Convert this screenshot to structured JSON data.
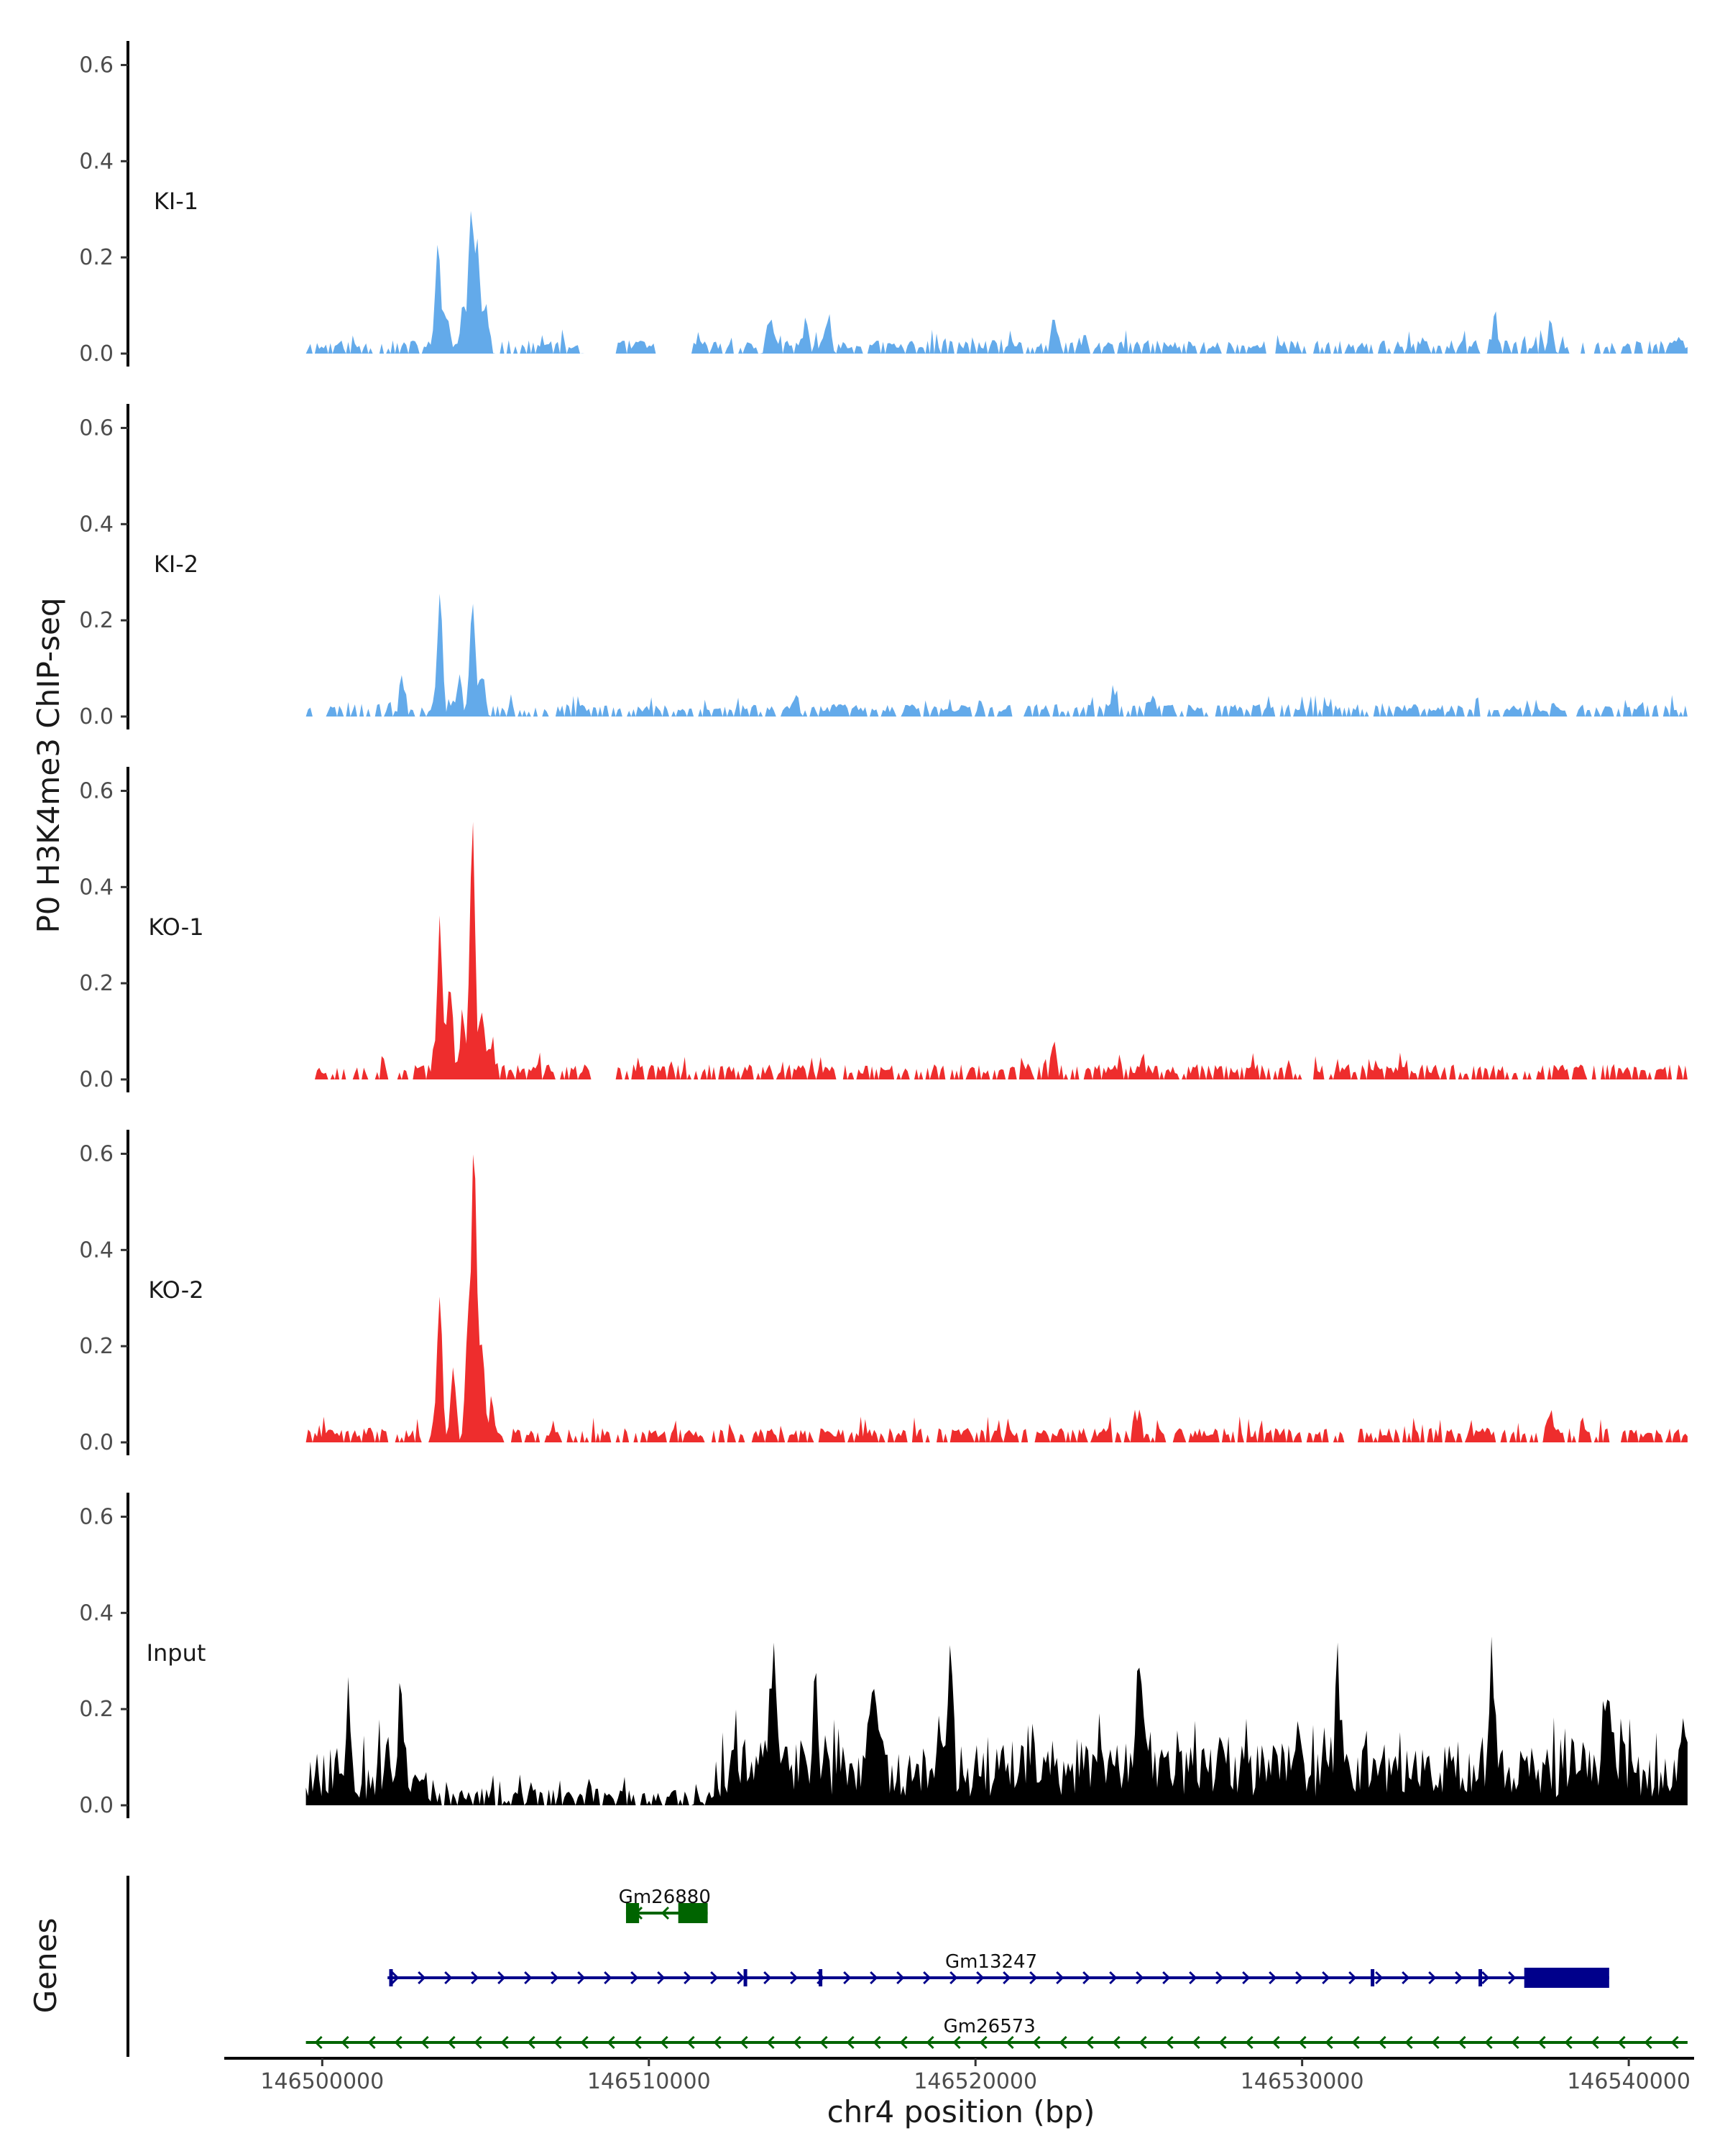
{
  "chart_data": {
    "type": "area",
    "title": "",
    "ylabel": "P0 H3K4me3 ChIP-seq",
    "xlabel": "chr4 position (bp)",
    "ylim": [
      0,
      0.65
    ],
    "yticks": [
      0.0,
      0.2,
      0.4,
      0.6
    ],
    "ytick_labels": [
      "0.0",
      "0.2",
      "0.4",
      "0.6"
    ],
    "xlim": [
      146497000,
      146542000
    ],
    "xticks": [
      146500000,
      146510000,
      146520000,
      146530000,
      146540000
    ],
    "xtick_labels": [
      "146500000",
      "146510000",
      "146520000",
      "146530000",
      "146540000"
    ],
    "region": [
      146499500,
      146541800
    ],
    "tracks": [
      {
        "name": "KI-1",
        "color": "#63aaea",
        "peaks": [
          [
            146503550,
            0.225
          ],
          [
            146503800,
            0.06
          ],
          [
            146504300,
            0.085
          ],
          [
            146504550,
            0.27
          ],
          [
            146504750,
            0.21
          ],
          [
            146505000,
            0.07
          ],
          [
            146508200,
            0.035
          ],
          [
            146513700,
            0.065
          ],
          [
            146514800,
            0.06
          ],
          [
            146515500,
            0.06
          ],
          [
            146522400,
            0.05
          ],
          [
            146535900,
            0.07
          ],
          [
            146537600,
            0.05
          ]
        ],
        "gaps": [
          [
            146508000,
            146509000
          ],
          [
            146510200,
            146511200
          ]
        ],
        "noise": 0.028,
        "seed": 11
      },
      {
        "name": "KI-2",
        "color": "#63aaea",
        "peaks": [
          [
            146502450,
            0.07
          ],
          [
            146503600,
            0.245
          ],
          [
            146504200,
            0.065
          ],
          [
            146504600,
            0.24
          ],
          [
            146504900,
            0.08
          ],
          [
            146514500,
            0.045
          ],
          [
            146524200,
            0.04
          ],
          [
            146525400,
            0.035
          ]
        ],
        "gaps": [],
        "noise": 0.026,
        "seed": 23
      },
      {
        "name": "KO-1",
        "color": "#ee2d2d",
        "peaks": [
          [
            146503600,
            0.32
          ],
          [
            146503900,
            0.2
          ],
          [
            146504300,
            0.13
          ],
          [
            146504600,
            0.52
          ],
          [
            146504900,
            0.14
          ],
          [
            146505200,
            0.07
          ],
          [
            146522400,
            0.055
          ],
          [
            146525100,
            0.045
          ]
        ],
        "gaps": [
          [
            146508300,
            146509000
          ]
        ],
        "noise": 0.032,
        "seed": 37
      },
      {
        "name": "KO-2",
        "color": "#ee2d2d",
        "peaks": [
          [
            146503600,
            0.29
          ],
          [
            146504000,
            0.14
          ],
          [
            146504450,
            0.22
          ],
          [
            146504650,
            0.6
          ],
          [
            146504900,
            0.2
          ],
          [
            146505200,
            0.08
          ],
          [
            146525000,
            0.055
          ],
          [
            146537600,
            0.045
          ]
        ],
        "gaps": [],
        "noise": 0.03,
        "seed": 41
      },
      {
        "name": "Input",
        "color": "#000000",
        "peaks": [
          [
            146500800,
            0.19
          ],
          [
            146502400,
            0.18
          ],
          [
            146513800,
            0.25
          ],
          [
            146515100,
            0.19
          ],
          [
            146516900,
            0.21
          ],
          [
            146519200,
            0.2
          ],
          [
            146525000,
            0.25
          ],
          [
            146531100,
            0.19
          ],
          [
            146535800,
            0.18
          ],
          [
            146539400,
            0.2
          ]
        ],
        "gaps": [],
        "noise": 0.12,
        "seed": 53
      }
    ],
    "genes_axis_label": "Genes",
    "genes": [
      {
        "name": "Gm26880",
        "start": 146509300,
        "end": 146511800,
        "strand": "-",
        "color": "#006400",
        "row": 0,
        "exons": [
          [
            146509300,
            146509700
          ],
          [
            146510900,
            146511800
          ]
        ]
      },
      {
        "name": "Gm13247",
        "start": 146502000,
        "end": 146539400,
        "strand": "+",
        "color": "#00008b",
        "row": 1,
        "exons": [
          [
            146502050,
            146502150
          ],
          [
            146512900,
            146513000
          ],
          [
            146515200,
            146515300
          ],
          [
            146532100,
            146532200
          ],
          [
            146535400,
            146535500
          ],
          [
            146536800,
            146539400
          ]
        ]
      },
      {
        "name": "Gm26573",
        "start": 146499500,
        "end": 146541800,
        "strand": "-",
        "color": "#006400",
        "row": 2,
        "exons": []
      }
    ]
  }
}
